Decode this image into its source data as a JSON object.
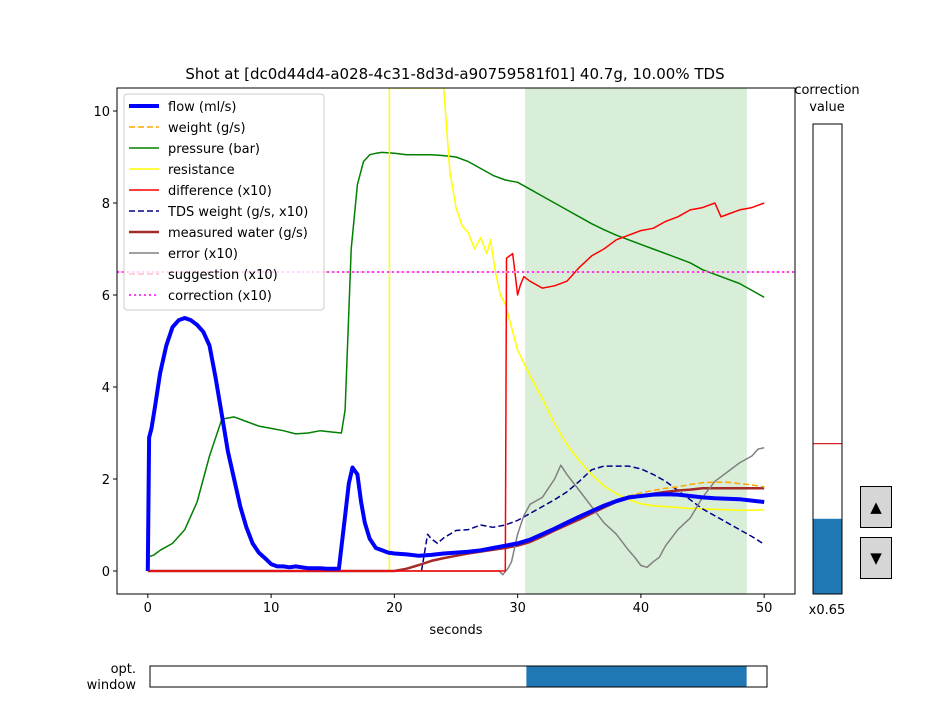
{
  "chart_data": {
    "type": "line",
    "title": "Shot at [dc0d44d4-a028-4c31-8d3d-a90759581f01] 40.7g, 10.00% TDS",
    "xlabel": "seconds",
    "ylabel": "",
    "xlim": [
      -2.5,
      52.5
    ],
    "ylim": [
      -0.5,
      10.5
    ],
    "xticks": [
      0,
      10,
      20,
      30,
      40,
      50
    ],
    "yticks": [
      0,
      2,
      4,
      6,
      8,
      10
    ],
    "grid": false,
    "legend_position": "top-left",
    "shaded_region": {
      "x0": 30.6,
      "x1": 48.6,
      "color": "#2ca02c"
    },
    "series": [
      {
        "name": "flow (ml/s)",
        "color": "#0000ff",
        "style": "solid",
        "width": 4,
        "x": [
          0,
          0.1,
          0.3,
          0.6,
          1,
          1.5,
          2,
          2.5,
          3,
          3.5,
          4,
          4.5,
          5,
          5.5,
          6,
          6.5,
          7,
          7.5,
          8,
          8.5,
          9,
          9.5,
          10,
          10.5,
          11,
          11.5,
          12,
          12.5,
          13,
          13.5,
          14,
          14.5,
          15,
          15.5,
          16,
          16.3,
          16.6,
          17,
          17.3,
          17.6,
          18,
          18.5,
          19,
          19.5,
          20,
          21,
          22,
          23,
          24,
          25,
          26,
          27,
          28,
          29,
          30,
          31,
          32,
          33,
          34,
          35,
          36,
          37,
          38,
          39,
          40,
          41,
          42,
          43,
          44,
          45,
          46,
          47,
          48,
          49,
          50
        ],
        "y": [
          0,
          2.9,
          3.1,
          3.6,
          4.3,
          4.9,
          5.3,
          5.45,
          5.5,
          5.45,
          5.35,
          5.2,
          4.9,
          4.2,
          3.4,
          2.6,
          2,
          1.4,
          0.95,
          0.6,
          0.4,
          0.28,
          0.15,
          0.1,
          0.1,
          0.08,
          0.1,
          0.08,
          0.06,
          0.06,
          0.06,
          0.05,
          0.05,
          0.05,
          1.2,
          1.9,
          2.25,
          2.1,
          1.5,
          1.05,
          0.7,
          0.5,
          0.45,
          0.4,
          0.38,
          0.36,
          0.33,
          0.35,
          0.38,
          0.4,
          0.42,
          0.45,
          0.5,
          0.55,
          0.6,
          0.68,
          0.8,
          0.92,
          1.05,
          1.18,
          1.3,
          1.42,
          1.52,
          1.6,
          1.63,
          1.66,
          1.67,
          1.66,
          1.63,
          1.6,
          1.58,
          1.57,
          1.56,
          1.53,
          1.5
        ]
      },
      {
        "name": "weight (g/s)",
        "color": "#ffa500",
        "style": "dashed",
        "width": 1.5,
        "x": [
          23,
          24,
          25,
          26,
          27,
          28,
          29,
          30,
          31,
          32,
          33,
          34,
          35,
          36,
          37,
          38,
          39,
          40,
          41,
          42,
          43,
          44,
          45,
          46,
          47,
          48,
          49,
          50
        ],
        "y": [
          0.33,
          0.36,
          0.39,
          0.42,
          0.45,
          0.5,
          0.55,
          0.6,
          0.7,
          0.82,
          0.95,
          1.08,
          1.2,
          1.32,
          1.45,
          1.55,
          1.63,
          1.7,
          1.75,
          1.8,
          1.83,
          1.88,
          1.92,
          1.93,
          1.93,
          1.9,
          1.87,
          1.83
        ]
      },
      {
        "name": "pressure (bar)",
        "color": "#008000",
        "style": "solid",
        "width": 1.5,
        "x": [
          0,
          0.5,
          1,
          2,
          3,
          4,
          5,
          6,
          7,
          8,
          9,
          10,
          11,
          12,
          13,
          14,
          15,
          15.7,
          16,
          16.5,
          17,
          17.5,
          18,
          18.5,
          19,
          20,
          21,
          22,
          23,
          24,
          25,
          26,
          27,
          28,
          29,
          30,
          31,
          32,
          33,
          34,
          35,
          36,
          37,
          38,
          39,
          40,
          41,
          42,
          43,
          44,
          45,
          46,
          47,
          48,
          49,
          50
        ],
        "y": [
          0.3,
          0.35,
          0.45,
          0.6,
          0.9,
          1.5,
          2.5,
          3.3,
          3.35,
          3.25,
          3.15,
          3.1,
          3.05,
          2.98,
          3.0,
          3.05,
          3.02,
          3.0,
          3.5,
          7.0,
          8.4,
          8.9,
          9.05,
          9.08,
          9.1,
          9.08,
          9.05,
          9.05,
          9.05,
          9.03,
          9.0,
          8.9,
          8.75,
          8.6,
          8.5,
          8.45,
          8.3,
          8.15,
          8.0,
          7.85,
          7.7,
          7.55,
          7.42,
          7.3,
          7.2,
          7.1,
          7.0,
          6.9,
          6.8,
          6.7,
          6.55,
          6.45,
          6.35,
          6.25,
          6.1,
          5.95
        ]
      },
      {
        "name": "resistance",
        "color": "#ffff00",
        "style": "solid",
        "width": 1.5,
        "x": [
          19.6,
          19.6,
          19.6,
          24,
          24.5,
          25,
          25.5,
          26,
          26.5,
          27,
          27.5,
          27.8,
          28.2,
          28.6,
          29,
          29.5,
          30,
          31,
          32,
          33,
          34,
          35,
          36,
          37,
          38,
          39,
          40,
          41,
          42,
          43,
          44,
          45,
          46,
          47,
          48,
          49,
          50
        ],
        "y": [
          0,
          10.5,
          10.5,
          10.5,
          8.7,
          7.9,
          7.5,
          7.35,
          7.0,
          7.25,
          6.9,
          7.2,
          6.5,
          6.0,
          5.8,
          5.3,
          4.8,
          4.25,
          3.75,
          3.2,
          2.75,
          2.4,
          2.1,
          1.85,
          1.68,
          1.55,
          1.46,
          1.42,
          1.4,
          1.38,
          1.36,
          1.35,
          1.34,
          1.33,
          1.32,
          1.32,
          1.33
        ]
      },
      {
        "name": "difference (x10)",
        "color": "#ff0000",
        "style": "solid",
        "width": 1.5,
        "x": [
          0,
          29,
          29.1,
          29.6,
          30,
          30.2,
          30.5,
          31,
          32,
          33,
          34,
          35,
          36,
          37,
          38,
          39,
          40,
          41,
          42,
          43,
          44,
          45,
          46,
          46.5,
          47,
          48,
          49,
          50
        ],
        "y": [
          0,
          0,
          6.8,
          6.9,
          6.0,
          6.2,
          6.4,
          6.3,
          6.15,
          6.2,
          6.3,
          6.6,
          6.85,
          7.0,
          7.2,
          7.3,
          7.4,
          7.45,
          7.6,
          7.7,
          7.85,
          7.9,
          8.0,
          7.7,
          7.75,
          7.85,
          7.9,
          8.0
        ]
      },
      {
        "name": "TDS weight (g/s, x10)",
        "color": "#00008b",
        "style": "dashed",
        "width": 1.5,
        "x": [
          22.2,
          22.7,
          23,
          23.5,
          24,
          25,
          26,
          27,
          28,
          29,
          30,
          31,
          32,
          33,
          34,
          35,
          36,
          37,
          38,
          39,
          40,
          41,
          42,
          43,
          44,
          45,
          46,
          47,
          48,
          49,
          50
        ],
        "y": [
          0,
          0.8,
          0.7,
          0.6,
          0.72,
          0.88,
          0.9,
          1.0,
          0.95,
          1.0,
          1.1,
          1.25,
          1.4,
          1.55,
          1.72,
          1.95,
          2.2,
          2.28,
          2.28,
          2.28,
          2.22,
          2.1,
          1.95,
          1.75,
          1.55,
          1.35,
          1.2,
          1.05,
          0.9,
          0.75,
          0.58
        ]
      },
      {
        "name": "measured water (g/s)",
        "color": "#a52a2a",
        "style": "solid",
        "width": 2.5,
        "x": [
          0,
          20,
          21,
          22,
          23,
          24,
          25,
          26,
          27,
          28,
          29,
          30,
          31,
          32,
          33,
          34,
          35,
          36,
          37,
          38,
          39,
          40,
          41,
          42,
          43,
          44,
          45,
          46,
          47,
          48,
          49,
          50
        ],
        "y": [
          0,
          0,
          0.05,
          0.13,
          0.22,
          0.28,
          0.33,
          0.38,
          0.42,
          0.46,
          0.5,
          0.55,
          0.63,
          0.75,
          0.88,
          1.0,
          1.12,
          1.25,
          1.38,
          1.5,
          1.58,
          1.63,
          1.68,
          1.72,
          1.75,
          1.77,
          1.8,
          1.8,
          1.8,
          1.8,
          1.8,
          1.8
        ]
      },
      {
        "name": "error (x10)",
        "color": "#808080",
        "style": "solid",
        "width": 1.5,
        "x": [
          0,
          28.5,
          28.8,
          29.2,
          29.5,
          30,
          30.5,
          31,
          32,
          33,
          33.5,
          34,
          35,
          36,
          37,
          38,
          39,
          39.5,
          40,
          40.5,
          41,
          41.5,
          42,
          43,
          44,
          45,
          46,
          47,
          48,
          49,
          49.5,
          50
        ],
        "y": [
          0,
          0,
          -0.08,
          0.05,
          0.2,
          0.8,
          1.2,
          1.45,
          1.6,
          2.0,
          2.3,
          2.1,
          1.75,
          1.4,
          1.05,
          0.8,
          0.45,
          0.3,
          0.12,
          0.08,
          0.2,
          0.3,
          0.55,
          0.9,
          1.15,
          1.6,
          1.95,
          2.15,
          2.35,
          2.5,
          2.65,
          2.68
        ]
      },
      {
        "name": "suggestion (x10)",
        "color": "#ffc0cb",
        "style": "dashed",
        "width": 1.5,
        "x": [
          -2.5,
          52.5
        ],
        "y": [
          6.5,
          6.5
        ]
      },
      {
        "name": "correction (x10)",
        "color": "#ff00ff",
        "style": "dotted",
        "width": 1.5,
        "x": [
          -2.5,
          52.5
        ],
        "y": [
          6.5,
          6.5
        ]
      }
    ]
  },
  "correction_panel": {
    "title_line1": "correction",
    "title_line2": "value",
    "fill_fraction": 0.16,
    "marker_fraction": 0.32,
    "fill_color": "#1f77b4",
    "marker_color": "#d62728",
    "value_label": "x0.65",
    "up_label": "▲",
    "down_label": "▼"
  },
  "opt_window": {
    "label_line1": "opt.",
    "label_line2": "window",
    "range": [
      0.61,
      0.967
    ],
    "fill_color": "#1f77b4"
  }
}
